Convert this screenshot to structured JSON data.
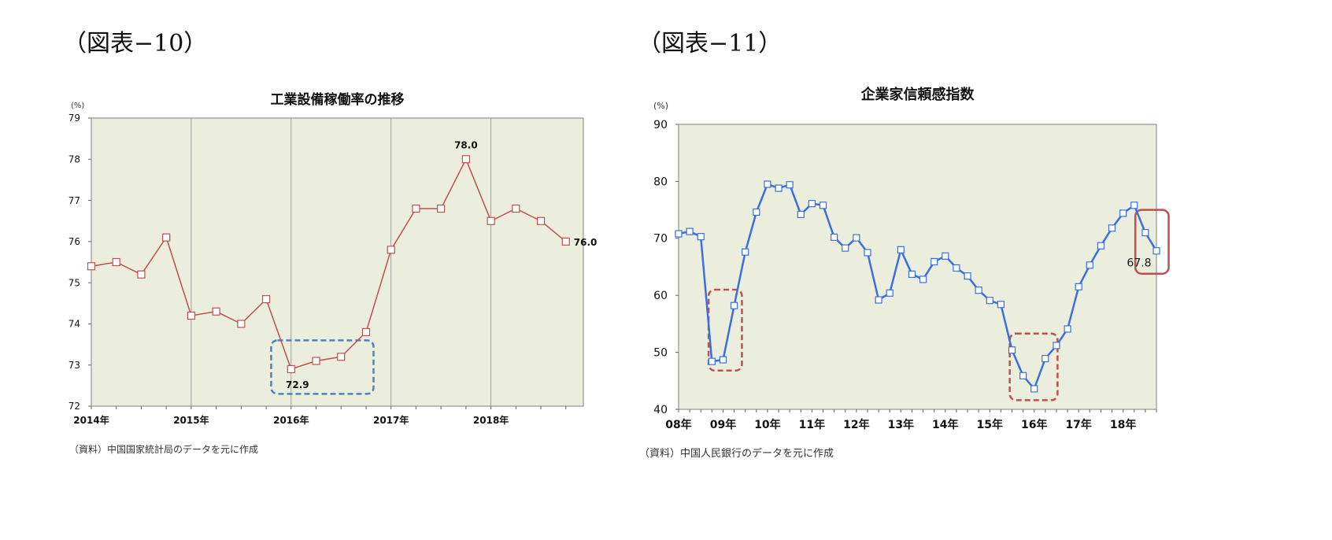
{
  "figures": [
    {
      "label": "（図表−10）",
      "source": "（資料）中国国家統計局のデータを元に作成"
    },
    {
      "label": "（図表−11）",
      "source": "（資料）中国人民銀行のデータを元に作成"
    }
  ],
  "chart_data": [
    {
      "type": "line",
      "title": "工業設備稼働率の推移",
      "unit": "(%)",
      "ylim": [
        72,
        79
      ],
      "yticks": [
        72,
        73,
        74,
        75,
        76,
        77,
        78,
        79
      ],
      "xrange": [
        0,
        19.7
      ],
      "xtick_labels": [
        {
          "pos": 0,
          "label": "2014年"
        },
        {
          "pos": 4,
          "label": "2015年"
        },
        {
          "pos": 8,
          "label": "2016年"
        },
        {
          "pos": 12,
          "label": "2017年"
        },
        {
          "pos": 16,
          "label": "2018年"
        }
      ],
      "vgrid": [
        4,
        8,
        12,
        16
      ],
      "series": [
        {
          "color": "#c0504d",
          "x": [
            0,
            1,
            2,
            3,
            4,
            5,
            6,
            7,
            8,
            9,
            10,
            11,
            12,
            13,
            14,
            15,
            16,
            17,
            18,
            19
          ],
          "values": [
            75.4,
            75.5,
            75.2,
            76.1,
            74.2,
            74.3,
            74.0,
            74.6,
            72.9,
            73.1,
            73.2,
            73.8,
            75.8,
            76.8,
            76.8,
            78.0,
            76.5,
            76.8,
            76.5,
            76.0
          ]
        }
      ],
      "annotations": [
        {
          "text": "78.0",
          "x": 15,
          "y": 78.0,
          "pos": "above"
        },
        {
          "text": "72.9",
          "x": 8,
          "y": 72.9,
          "pos": "below"
        },
        {
          "text": "76.0",
          "x": 19,
          "y": 76.0,
          "pos": "right"
        }
      ],
      "highlight_boxes": [
        {
          "x0": 7.2,
          "x1": 11.3,
          "y0": 72.3,
          "y1": 73.6,
          "color": "#4f81bd"
        }
      ],
      "colors": {
        "plot_bg": "#ebeedd",
        "marker_fill": "#ffffff"
      }
    },
    {
      "type": "line",
      "title": "企業家信頼感指数",
      "unit": "(%)",
      "ylim": [
        40,
        90
      ],
      "yticks": [
        40,
        50,
        60,
        70,
        80,
        90
      ],
      "xrange": [
        0,
        43
      ],
      "xtick_labels": [
        {
          "pos": 0,
          "label": "08年"
        },
        {
          "pos": 4,
          "label": "09年"
        },
        {
          "pos": 8,
          "label": "10年"
        },
        {
          "pos": 12,
          "label": "11年"
        },
        {
          "pos": 16,
          "label": "12年"
        },
        {
          "pos": 20,
          "label": "13年"
        },
        {
          "pos": 24,
          "label": "14年"
        },
        {
          "pos": 28,
          "label": "15年"
        },
        {
          "pos": 32,
          "label": "16年"
        },
        {
          "pos": 36,
          "label": "17年"
        },
        {
          "pos": 40,
          "label": "18年"
        }
      ],
      "series": [
        {
          "color": "#3b6fe0",
          "x": [
            0,
            1,
            2,
            3,
            4,
            5,
            6,
            7,
            8,
            9,
            10,
            11,
            12,
            13,
            14,
            15,
            16,
            17,
            18,
            19,
            20,
            21,
            22,
            23,
            24,
            25,
            26,
            27,
            28,
            29,
            30,
            31,
            32,
            33,
            34,
            35,
            36,
            37,
            38,
            39,
            40,
            41,
            42,
            43
          ],
          "values": [
            70.8,
            71.2,
            70.3,
            48.4,
            48.7,
            58.2,
            67.6,
            74.6,
            79.5,
            78.8,
            79.4,
            74.2,
            76.1,
            75.8,
            70.2,
            68.3,
            70.1,
            67.5,
            59.2,
            60.4,
            68.0,
            63.7,
            62.8,
            65.9,
            66.9,
            64.8,
            63.4,
            60.9,
            59.1,
            58.4,
            50.4,
            45.9,
            43.6,
            48.9,
            51.2,
            54.1,
            61.5,
            65.3,
            68.7,
            71.8,
            74.4,
            75.8,
            71.0,
            67.8
          ]
        }
      ],
      "annotations": [
        {
          "text": "67.8",
          "x": 43,
          "y": 67.8,
          "pos": "below-left"
        }
      ],
      "highlight_boxes": [
        {
          "x0": 2.7,
          "x1": 5.7,
          "y0": 46.8,
          "y1": 61.0,
          "color": "#c0504d"
        },
        {
          "x0": 29.8,
          "x1": 34.1,
          "y0": 41.6,
          "y1": 53.3,
          "color": "#c0504d"
        },
        {
          "x0": 41.1,
          "x1": 44.1,
          "y0": 63.8,
          "y1": 75.0,
          "color": "#c0504d",
          "solid": true
        }
      ],
      "colors": {
        "plot_bg": "#ebeedd",
        "marker_fill": "#ffffff"
      }
    }
  ]
}
